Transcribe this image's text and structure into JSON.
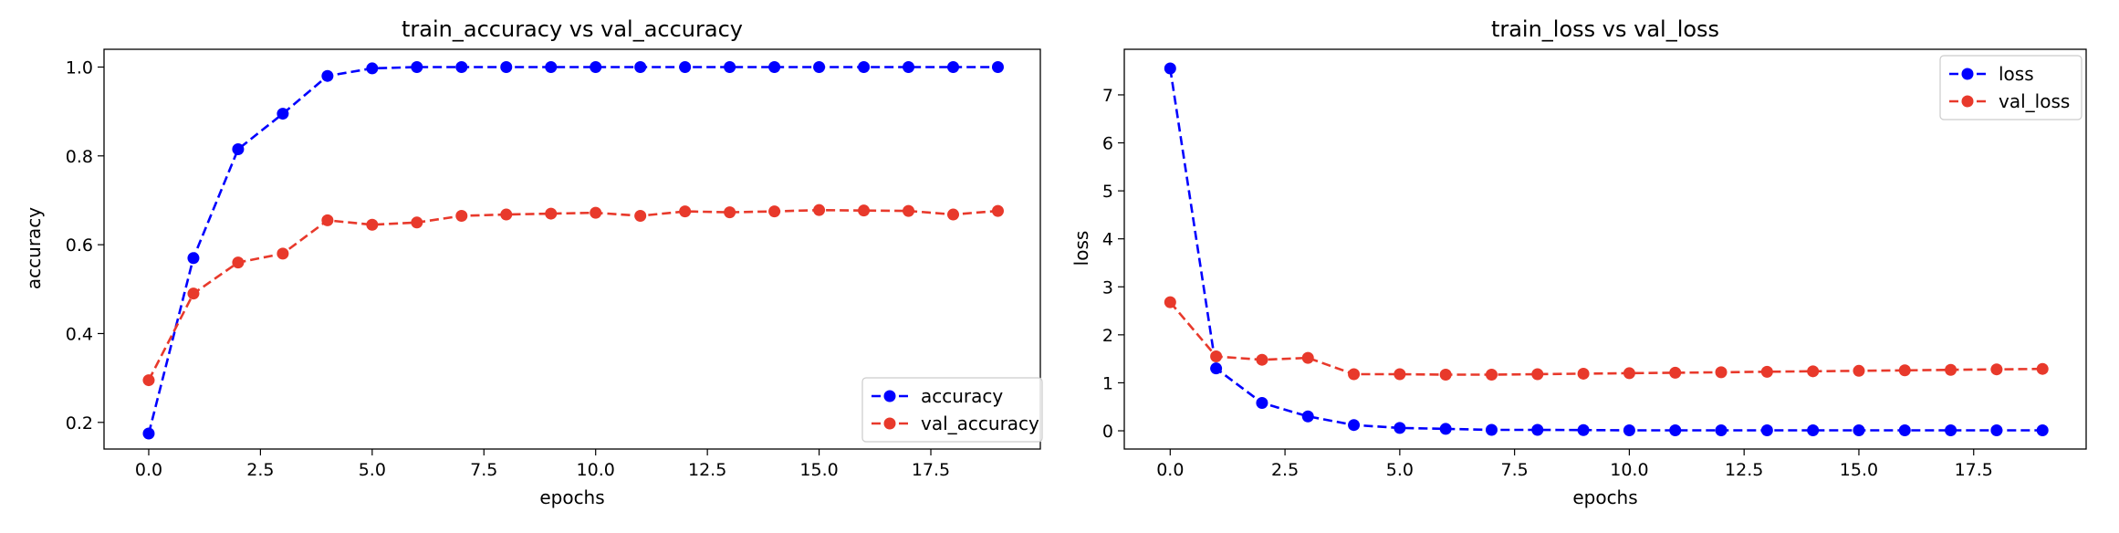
{
  "chart_data": [
    {
      "type": "line",
      "title": "train_accuracy vs val_accuracy",
      "xlabel": "epochs",
      "ylabel": "accuracy",
      "xlim": [
        -1.0,
        19.95
      ],
      "ylim": [
        0.14,
        1.04
      ],
      "xticks": [
        0.0,
        2.5,
        5.0,
        7.5,
        10.0,
        12.5,
        15.0,
        17.5
      ],
      "xtick_labels": [
        "0.0",
        "2.5",
        "5.0",
        "7.5",
        "10.0",
        "12.5",
        "15.0",
        "17.5"
      ],
      "yticks": [
        0.2,
        0.4,
        0.6,
        0.8,
        1.0
      ],
      "ytick_labels": [
        "0.2",
        "0.4",
        "0.6",
        "0.8",
        "1.0"
      ],
      "legend_position": "lower-right",
      "x": [
        0,
        1,
        2,
        3,
        4,
        5,
        6,
        7,
        8,
        9,
        10,
        11,
        12,
        13,
        14,
        15,
        16,
        17,
        18,
        19
      ],
      "series": [
        {
          "name": "accuracy",
          "color": "#0000ff",
          "values": [
            0.175,
            0.57,
            0.815,
            0.895,
            0.98,
            0.997,
            1.0,
            1.0,
            1.0,
            1.0,
            1.0,
            1.0,
            1.0,
            1.0,
            1.0,
            1.0,
            1.0,
            1.0,
            1.0,
            1.0
          ]
        },
        {
          "name": "val_accuracy",
          "color": "#e8392b",
          "values": [
            0.295,
            0.49,
            0.56,
            0.58,
            0.655,
            0.645,
            0.65,
            0.665,
            0.668,
            0.67,
            0.672,
            0.665,
            0.675,
            0.673,
            0.675,
            0.678,
            0.677,
            0.676,
            0.668,
            0.676
          ]
        }
      ]
    },
    {
      "type": "line",
      "title": "train_loss vs val_loss",
      "xlabel": "epochs",
      "ylabel": "loss",
      "xlim": [
        -1.0,
        19.95
      ],
      "ylim": [
        -0.38,
        7.95
      ],
      "xticks": [
        0.0,
        2.5,
        5.0,
        7.5,
        10.0,
        12.5,
        15.0,
        17.5
      ],
      "xtick_labels": [
        "0.0",
        "2.5",
        "5.0",
        "7.5",
        "10.0",
        "12.5",
        "15.0",
        "17.5"
      ],
      "yticks": [
        0,
        1,
        2,
        3,
        4,
        5,
        6,
        7
      ],
      "ytick_labels": [
        "0",
        "1",
        "2",
        "3",
        "4",
        "5",
        "6",
        "7"
      ],
      "legend_position": "upper-right",
      "x": [
        0,
        1,
        2,
        3,
        4,
        5,
        6,
        7,
        8,
        9,
        10,
        11,
        12,
        13,
        14,
        15,
        16,
        17,
        18,
        19
      ],
      "series": [
        {
          "name": "loss",
          "color": "#0000ff",
          "values": [
            7.55,
            1.3,
            0.58,
            0.3,
            0.12,
            0.06,
            0.04,
            0.02,
            0.02,
            0.015,
            0.01,
            0.01,
            0.01,
            0.01,
            0.01,
            0.01,
            0.01,
            0.01,
            0.01,
            0.01
          ]
        },
        {
          "name": "val_loss",
          "color": "#e8392b",
          "values": [
            2.68,
            1.55,
            1.48,
            1.52,
            1.18,
            1.18,
            1.17,
            1.17,
            1.18,
            1.19,
            1.2,
            1.21,
            1.22,
            1.23,
            1.24,
            1.25,
            1.26,
            1.27,
            1.28,
            1.29
          ]
        }
      ]
    }
  ]
}
